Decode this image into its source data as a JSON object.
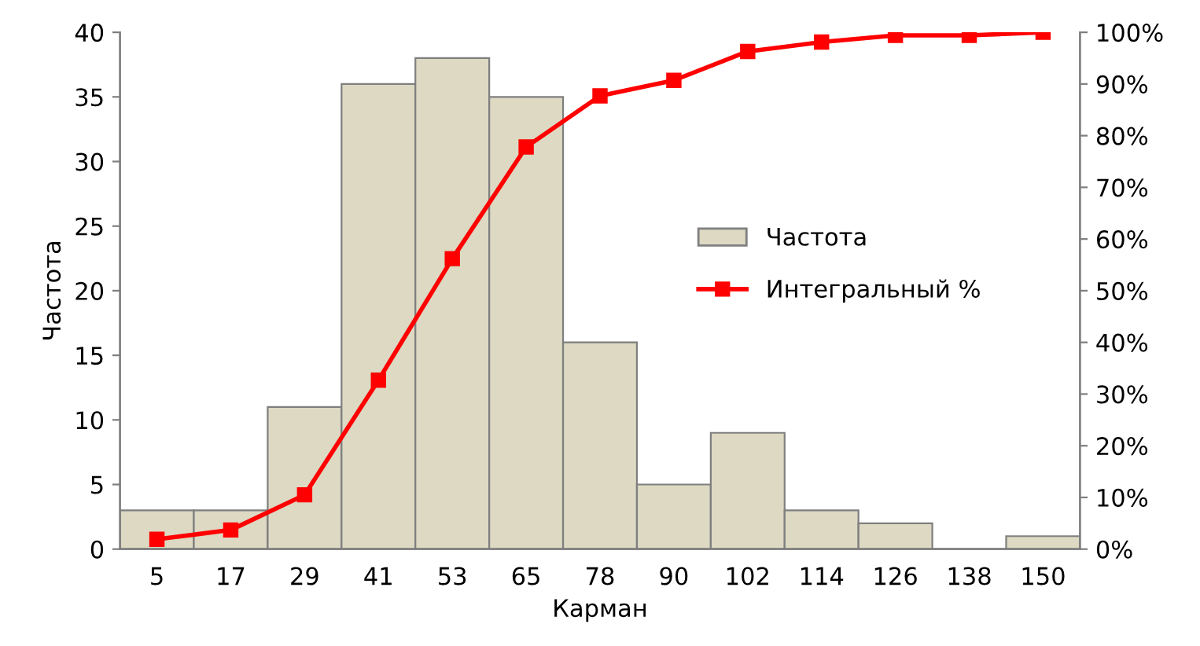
{
  "chart_data": {
    "type": "bar",
    "xlabel": "Карман",
    "ylabel": "Частота",
    "categories": [
      "5",
      "17",
      "29",
      "41",
      "53",
      "65",
      "78",
      "90",
      "102",
      "114",
      "126",
      "138",
      "150"
    ],
    "series": [
      {
        "name": "Частота",
        "color": "#ddd9c3",
        "values": [
          3,
          3,
          11,
          36,
          38,
          35,
          16,
          5,
          9,
          3,
          2,
          0,
          1
        ]
      },
      {
        "name": "Интегральный %",
        "type": "line",
        "axis": "y2",
        "color": "#ff0000",
        "marker": "square",
        "values": [
          1.9,
          3.7,
          10.5,
          32.7,
          56.2,
          77.8,
          87.7,
          90.7,
          96.3,
          98.1,
          99.4,
          99.4,
          100
        ]
      }
    ],
    "ylim": [
      0,
      40
    ],
    "yticks": [
      0,
      5,
      10,
      15,
      20,
      25,
      30,
      35,
      40
    ],
    "y2lim": [
      0,
      100
    ],
    "y2ticks": [
      {
        "value": 0,
        "label": "0%"
      },
      {
        "value": 10,
        "label": "10%"
      },
      {
        "value": 20,
        "label": "20%"
      },
      {
        "value": 30,
        "label": "30%"
      },
      {
        "value": 40,
        "label": "40%"
      },
      {
        "value": 50,
        "label": "50%"
      },
      {
        "value": 60,
        "label": "60%"
      },
      {
        "value": 70,
        "label": "70%"
      },
      {
        "value": 80,
        "label": "80%"
      },
      {
        "value": 90,
        "label": "90%"
      },
      {
        "value": 100,
        "label": "100%"
      }
    ],
    "grid": false,
    "legend": "right"
  }
}
